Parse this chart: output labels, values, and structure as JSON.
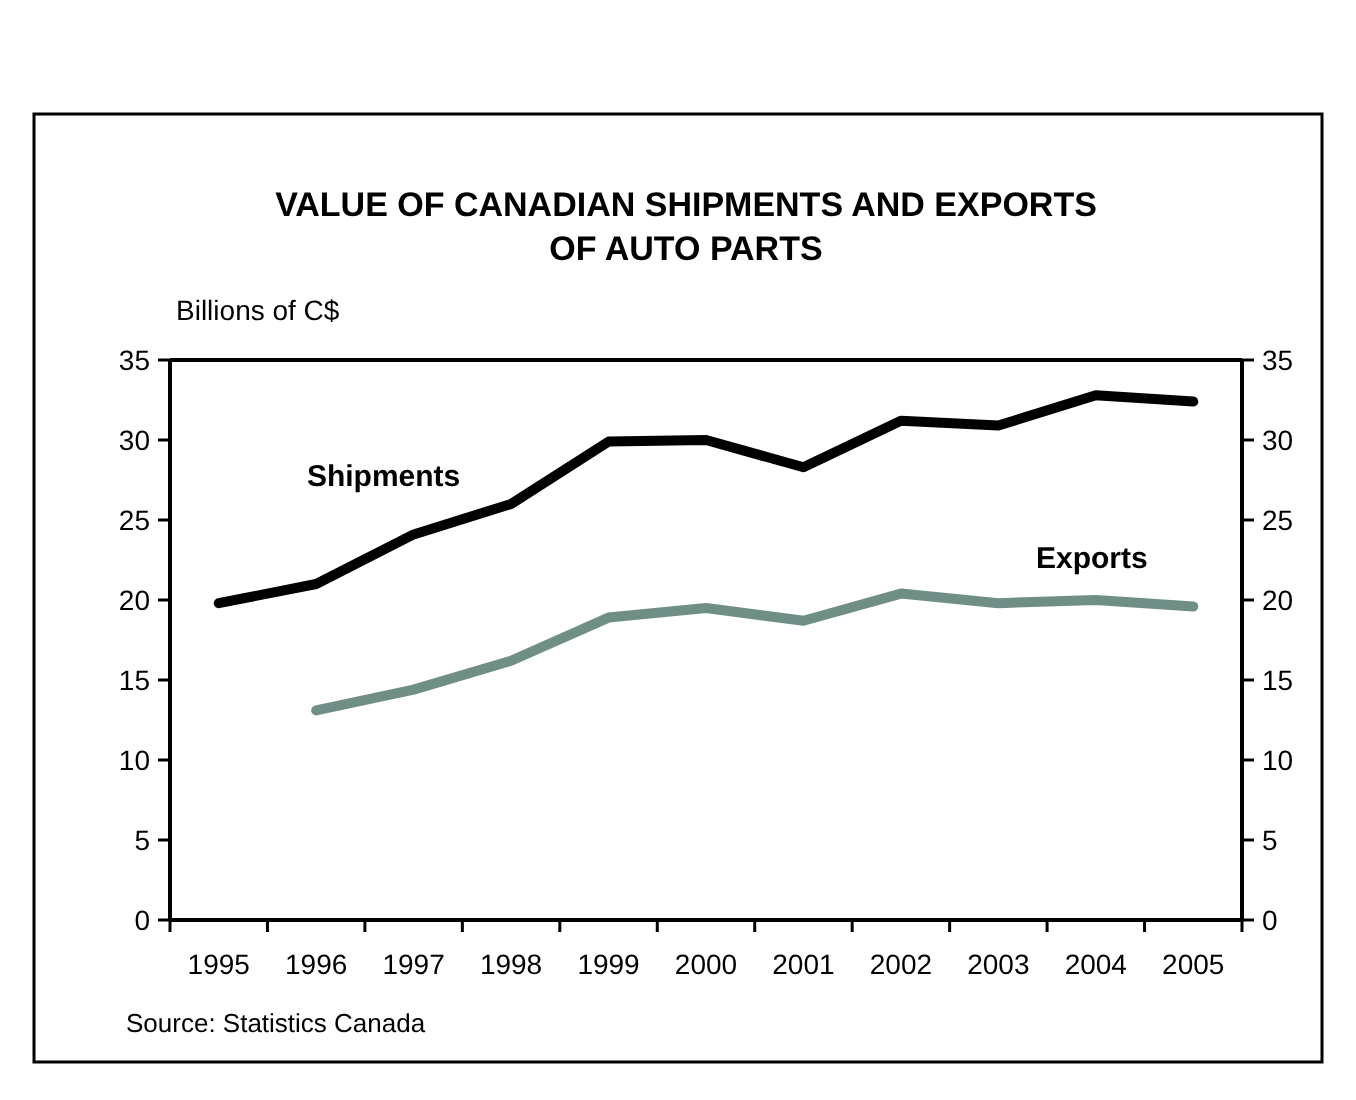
{
  "chart_data": {
    "type": "line",
    "title": "VALUE OF CANADIAN SHIPMENTS AND EXPORTS\nOF AUTO PARTS",
    "ylabel": "Billions of C$",
    "categories": [
      "1995",
      "1996",
      "1997",
      "1998",
      "1999",
      "2000",
      "2001",
      "2002",
      "2003",
      "2004",
      "2005"
    ],
    "series": [
      {
        "name": "Shipments",
        "color": "#000000",
        "values": [
          19.8,
          21.0,
          24.1,
          26.0,
          29.9,
          30.0,
          28.3,
          31.2,
          30.9,
          32.8,
          32.4
        ]
      },
      {
        "name": "Exports",
        "color": "#6f8f86",
        "values": [
          null,
          13.1,
          14.4,
          16.2,
          18.9,
          19.5,
          18.7,
          20.4,
          19.8,
          20.0,
          19.6
        ]
      }
    ],
    "ylim": [
      0,
      35
    ],
    "yticks": [
      0,
      5,
      10,
      15,
      20,
      25,
      30,
      35
    ],
    "y2lim": [
      0,
      35
    ],
    "y2ticks": [
      0,
      5,
      10,
      15,
      20,
      25,
      30,
      35
    ],
    "grid": false,
    "legend": false,
    "marker": "none",
    "line_style": "solid",
    "annotations": [
      "Source: Statistics Canada"
    ]
  }
}
